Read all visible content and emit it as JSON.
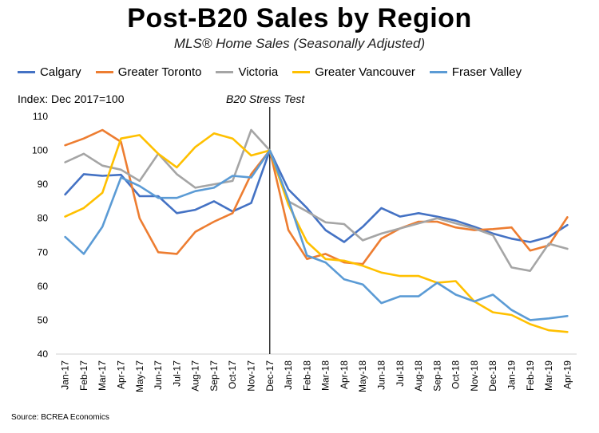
{
  "chart_data": {
    "type": "line",
    "title": "Post-B20 Sales by Region",
    "subtitle": "MLS® Home Sales (Seasonally Adjusted)",
    "ylabel": "Index: Dec 2017=100",
    "xlabel": "",
    "ylim": [
      40,
      110
    ],
    "yticks": [
      40,
      50,
      60,
      70,
      80,
      90,
      100,
      110
    ],
    "grid": false,
    "legend_position": "top",
    "annotation": {
      "label": "B20 Stress Test",
      "at": "Dec-17"
    },
    "source": "Source: BCREA Economics",
    "categories": [
      "Jan-17",
      "Feb-17",
      "Mar-17",
      "Apr-17",
      "May-17",
      "Jun-17",
      "Jul-17",
      "Aug-17",
      "Sep-17",
      "Oct-17",
      "Nov-17",
      "Dec-17",
      "Jan-18",
      "Feb-18",
      "Mar-18",
      "Apr-18",
      "May-18",
      "Jun-18",
      "Jul-18",
      "Aug-18",
      "Sep-18",
      "Oct-18",
      "Nov-18",
      "Dec-18",
      "Jan-19",
      "Feb-19",
      "Mar-19",
      "Apr-19"
    ],
    "series": [
      {
        "name": "Calgary",
        "color": "#4472C4",
        "values": [
          87,
          93,
          92.5,
          92.8,
          86.5,
          86.5,
          81.5,
          82.5,
          85,
          82,
          84.5,
          100,
          88.5,
          83,
          76.5,
          73,
          77.5,
          83,
          80.5,
          81.5,
          80.5,
          79.3,
          77.5,
          75.5,
          74,
          73,
          74.5,
          78
        ]
      },
      {
        "name": "Greater Toronto",
        "color": "#ED7D31",
        "values": [
          101.5,
          103.5,
          106,
          102.5,
          80,
          70,
          69.5,
          76,
          79,
          81.5,
          93,
          100,
          76.5,
          68,
          69.5,
          67,
          66.5,
          74,
          77,
          79,
          79,
          77.3,
          76.5,
          76.8,
          77.3,
          70.5,
          72,
          80.3
        ]
      },
      {
        "name": "Victoria",
        "color": "#A5A5A5",
        "values": [
          96.5,
          99,
          95.5,
          94.3,
          91,
          99,
          93,
          89,
          90,
          91,
          106,
          100,
          85,
          82,
          78.8,
          78.3,
          73.5,
          75.5,
          77,
          78.5,
          80,
          78.5,
          77,
          75,
          65.5,
          64.5,
          72.5,
          71
        ]
      },
      {
        "name": "Greater Vancouver",
        "color": "#FFC000",
        "values": [
          80.5,
          83,
          87.5,
          103.5,
          104.5,
          99,
          95,
          101,
          105,
          103.5,
          98.5,
          100,
          84,
          73,
          68,
          67.5,
          66,
          64,
          63,
          63,
          61,
          61.5,
          55.5,
          52.3,
          51.5,
          48.8,
          47,
          46.5
        ]
      },
      {
        "name": "Fraser Valley",
        "color": "#5B9BD5",
        "values": [
          74.5,
          69.5,
          77.5,
          92,
          89.5,
          86,
          86,
          88,
          89,
          92.5,
          92,
          100,
          85.5,
          69,
          67,
          62,
          60.5,
          55,
          57,
          57,
          61,
          57.5,
          55.5,
          57.5,
          53,
          50,
          50.5,
          51.2
        ]
      }
    ]
  }
}
